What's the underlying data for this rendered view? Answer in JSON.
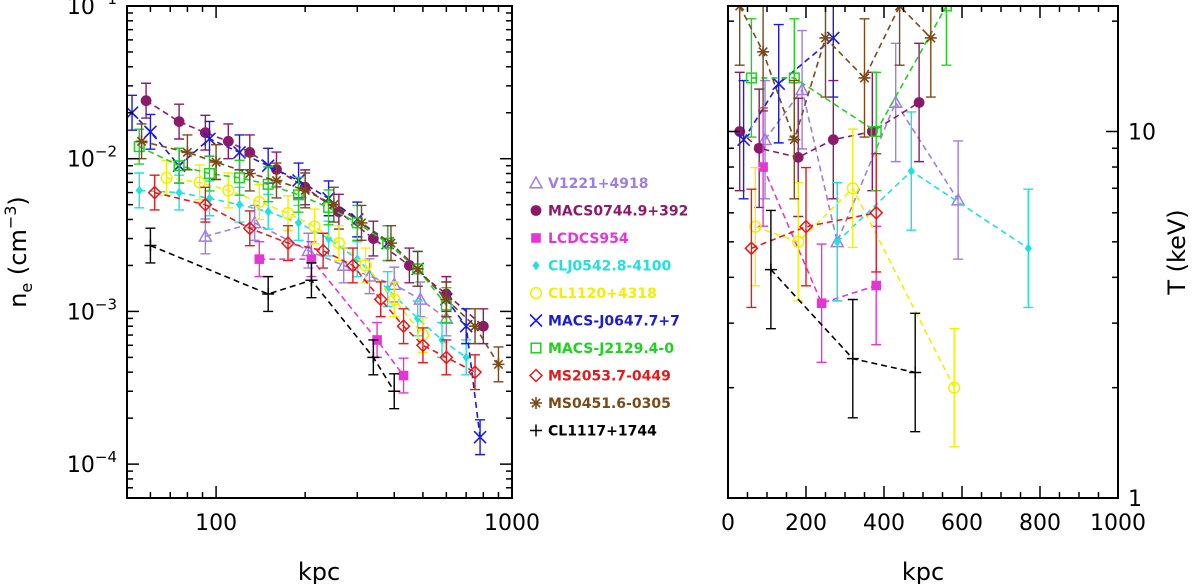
{
  "chart_data": [
    {
      "type": "scatter",
      "panel": "left",
      "xscale": "log",
      "yscale": "log",
      "xlim": [
        50,
        1000
      ],
      "ylim": [
        6e-05,
        0.1
      ],
      "xlabel": "kpc",
      "ylabel_main": "n",
      "ylabel_sub": "e",
      "ylabel_open": " (cm",
      "ylabel_sup": "−3",
      "ylabel_close": ")",
      "x_ticks": [
        {
          "value": 100,
          "label": "100"
        },
        {
          "value": 1000,
          "label": "1000"
        }
      ],
      "y_ticks": [
        {
          "value": 0.0001,
          "base": "10",
          "exp": "−4"
        },
        {
          "value": 0.001,
          "base": "10",
          "exp": "−3"
        },
        {
          "value": 0.01,
          "base": "10",
          "exp": "−2"
        },
        {
          "value": 0.1,
          "base": "10",
          "exp": "−1"
        }
      ],
      "series": [
        {
          "name": "V1221+4918",
          "color": "#9e7ee0",
          "marker": "triangle-open",
          "x": [
            92,
            135,
            205,
            270,
            330,
            400,
            490,
            600
          ],
          "y": [
            0.0031,
            0.0038,
            0.0025,
            0.002,
            0.0017,
            0.0015,
            0.0012,
            0.0009
          ]
        },
        {
          "name": "MACS0744.9+392",
          "color": "#8b1a6b",
          "marker": "circle-filled",
          "x": [
            58,
            75,
            92,
            110,
            130,
            160,
            200,
            260,
            340,
            450,
            600,
            800
          ],
          "y": [
            0.024,
            0.0175,
            0.0148,
            0.013,
            0.011,
            0.0085,
            0.0065,
            0.0045,
            0.003,
            0.002,
            0.0013,
            0.0008
          ]
        },
        {
          "name": "LCDCS954",
          "color": "#e535d6",
          "marker": "square-filled",
          "x": [
            140,
            210,
            350,
            430
          ],
          "y": [
            0.0022,
            0.0022,
            0.00065,
            0.00038
          ]
        },
        {
          "name": "CLJ0542.8-4100",
          "color": "#22e0e0",
          "marker": "diamond-filled",
          "x": [
            55,
            75,
            95,
            120,
            150,
            190,
            240,
            300,
            380,
            480,
            580,
            700
          ],
          "y": [
            0.0062,
            0.006,
            0.0055,
            0.005,
            0.0045,
            0.0038,
            0.003,
            0.0022,
            0.0014,
            0.0009,
            0.00065,
            0.0005
          ]
        },
        {
          "name": "CL1120+4318",
          "color": "#f0f000",
          "marker": "circle-open",
          "x": [
            68,
            88,
            110,
            140,
            175,
            215,
            260,
            320,
            400,
            500
          ],
          "y": [
            0.0075,
            0.007,
            0.0062,
            0.0052,
            0.0044,
            0.0036,
            0.0028,
            0.002,
            0.0012,
            0.0007
          ]
        },
        {
          "name": "MACS-J0647.7+7",
          "color": "#1c1cd6",
          "marker": "x",
          "x": [
            52,
            60,
            75,
            95,
            120,
            150,
            190,
            240,
            300,
            380,
            480,
            600,
            700,
            780
          ],
          "y": [
            0.02,
            0.015,
            0.009,
            0.0135,
            0.011,
            0.009,
            0.0072,
            0.0055,
            0.004,
            0.0028,
            0.0019,
            0.0012,
            0.0008,
            0.00015
          ]
        },
        {
          "name": "MACS-J2129.4-0",
          "color": "#22d022",
          "marker": "square-open",
          "x": [
            55,
            75,
            95,
            120,
            150,
            190,
            240,
            300,
            380,
            480,
            600
          ],
          "y": [
            0.012,
            0.009,
            0.008,
            0.0075,
            0.0068,
            0.0058,
            0.0048,
            0.0038,
            0.0028,
            0.0019,
            0.0011
          ]
        },
        {
          "name": "MS2053.7-0449",
          "color": "#e01c1c",
          "marker": "diamond-open",
          "x": [
            62,
            92,
            130,
            175,
            230,
            290,
            360,
            430,
            500,
            600,
            750
          ],
          "y": [
            0.006,
            0.005,
            0.0035,
            0.0028,
            0.0025,
            0.002,
            0.0012,
            0.0008,
            0.0006,
            0.0005,
            0.0004
          ]
        },
        {
          "name": "MS0451.6-0305",
          "color": "#7a4a18",
          "marker": "asterisk",
          "x": [
            56,
            80,
            100,
            130,
            160,
            200,
            250,
            310,
            390,
            480,
            600,
            750,
            900
          ],
          "y": [
            0.013,
            0.011,
            0.0095,
            0.008,
            0.0072,
            0.0062,
            0.005,
            0.0038,
            0.0028,
            0.0019,
            0.0012,
            0.0008,
            0.00045
          ]
        },
        {
          "name": "CL1117+1744",
          "color": "#000000",
          "marker": "plus",
          "x": [
            60,
            150,
            210,
            340,
            400
          ],
          "y": [
            0.0027,
            0.0013,
            0.0016,
            0.0005,
            0.0003
          ]
        }
      ]
    },
    {
      "type": "line",
      "panel": "right",
      "xscale": "linear",
      "yscale": "log",
      "xlim": [
        0,
        1000
      ],
      "ylim": [
        1,
        22
      ],
      "xlabel": "kpc",
      "ylabel": "T (keV)",
      "x_ticks": [
        {
          "value": 0,
          "label": "0"
        },
        {
          "value": 200,
          "label": "200"
        },
        {
          "value": 400,
          "label": "400"
        },
        {
          "value": 600,
          "label": "600"
        },
        {
          "value": 800,
          "label": "800"
        },
        {
          "value": 1000,
          "label": "1000"
        }
      ],
      "y_ticks": [
        {
          "value": 1,
          "label": "1"
        },
        {
          "value": 10,
          "label": "10"
        }
      ],
      "series": [
        {
          "name": "V1221+4918",
          "color": "#9e7ee0",
          "marker": "triangle-open",
          "x": [
            95,
            190,
            280,
            430,
            590
          ],
          "y": [
            9.5,
            13,
            5,
            12,
            6.5
          ]
        },
        {
          "name": "MACS0744.9+392",
          "color": "#8b1a6b",
          "marker": "circle-filled",
          "x": [
            30,
            80,
            180,
            270,
            370,
            490
          ],
          "y": [
            10,
            9,
            8.5,
            9.5,
            10,
            12
          ]
        },
        {
          "name": "LCDCS954",
          "color": "#e535d6",
          "marker": "square-filled",
          "x": [
            90,
            240,
            380
          ],
          "y": [
            8,
            3.4,
            3.8
          ]
        },
        {
          "name": "CLJ0542.8-4100",
          "color": "#22e0e0",
          "marker": "diamond-filled",
          "x": [
            280,
            470,
            770
          ],
          "y": [
            5.0,
            7.8,
            4.8
          ]
        },
        {
          "name": "CL1120+4318",
          "color": "#f0f000",
          "marker": "circle-open",
          "x": [
            70,
            180,
            320,
            580
          ],
          "y": [
            5.5,
            5.0,
            7.0,
            2.0
          ]
        },
        {
          "name": "MACS-J0647.7+7",
          "color": "#1c1cd6",
          "marker": "x",
          "x": [
            40,
            130,
            270
          ],
          "y": [
            9.5,
            13.5,
            18
          ]
        },
        {
          "name": "MACS-J2129.4-0",
          "color": "#22d022",
          "marker": "square-open",
          "x": [
            60,
            170,
            380,
            560
          ],
          "y": [
            14,
            14,
            10,
            22
          ]
        },
        {
          "name": "MS2053.7-0449",
          "color": "#e01c1c",
          "marker": "diamond-open",
          "x": [
            60,
            200,
            380
          ],
          "y": [
            4.8,
            5.5,
            6.0
          ]
        },
        {
          "name": "MS0451.6-0305",
          "color": "#7a4a18",
          "marker": "asterisk",
          "x": [
            30,
            90,
            170,
            250,
            350,
            440,
            520
          ],
          "y": [
            22,
            16.5,
            9.5,
            18,
            14,
            22,
            18
          ]
        },
        {
          "name": "CL1117+1744",
          "color": "#000000",
          "marker": "plus",
          "x": [
            110,
            320,
            480
          ],
          "y": [
            4.2,
            2.4,
            2.2
          ]
        }
      ]
    }
  ]
}
